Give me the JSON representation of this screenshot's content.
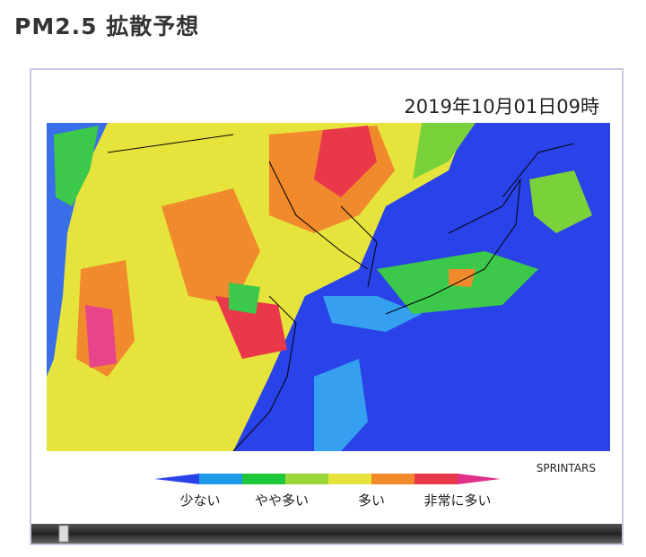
{
  "header": {
    "title": "PM2.5 拡散予想"
  },
  "map": {
    "timestamp": "2019年10月01日09時",
    "credit": "SPRINTARS",
    "legend": [
      "少ない",
      "やや多い",
      "多い",
      "非常に多い"
    ]
  }
}
